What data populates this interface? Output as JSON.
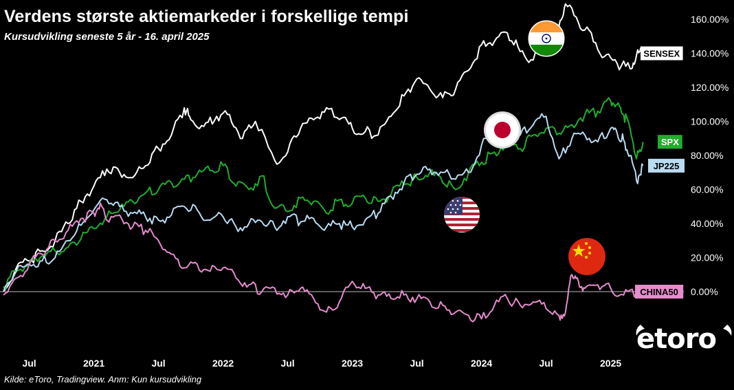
{
  "header": {
    "title": "Verdens største aktiemarkeder i forskellige tempi",
    "subtitle": "Kursudvikling seneste 5 år - 16. april 2025"
  },
  "footer": {
    "source": "Kilde: eToro, Tradingview. Anm: Kun kursudvikling"
  },
  "brand": {
    "logo_text": "etoro"
  },
  "flags": {
    "india": "india-flag-icon",
    "japan": "japan-flag-icon",
    "usa": "usa-flag-icon",
    "china": "china-flag-icon"
  },
  "chart_data": {
    "type": "line",
    "title": "Verdens største aktiemarkeder i forskellige tempi",
    "subtitle": "Kursudvikling seneste 5 år - 16. april 2025",
    "xlabel": "",
    "ylabel": "",
    "x_range": [
      2020.3,
      2025.3
    ],
    "ylim": [
      -22,
      172
    ],
    "y_ticks": [
      0,
      20,
      40,
      60,
      80,
      100,
      120,
      140,
      160
    ],
    "y_tick_labels": [
      "0.00%",
      "20.00%",
      "40.00%",
      "60.00%",
      "80.00%",
      "100.00%",
      "120.00%",
      "140.00%",
      "160.00%"
    ],
    "x_ticks": [
      {
        "x": 2020.5,
        "label": "Jul"
      },
      {
        "x": 2021.0,
        "label": "2021"
      },
      {
        "x": 2021.5,
        "label": "Jul"
      },
      {
        "x": 2022.0,
        "label": "2022"
      },
      {
        "x": 2022.5,
        "label": "Jul"
      },
      {
        "x": 2023.0,
        "label": "2023"
      },
      {
        "x": 2023.5,
        "label": "Jul"
      },
      {
        "x": 2024.0,
        "label": "2024"
      },
      {
        "x": 2024.5,
        "label": "Jul"
      },
      {
        "x": 2025.0,
        "label": "2025"
      }
    ],
    "zero_line": 0,
    "legend": "end-of-line labels",
    "series": [
      {
        "name": "SENSEX",
        "label": "SENSEX",
        "color": "#ffffff",
        "label_bg": "#ffffff",
        "label_fg": "#000000",
        "end_value": 140,
        "points": [
          [
            2020.3,
            0
          ],
          [
            2020.4,
            14
          ],
          [
            2020.5,
            18
          ],
          [
            2020.6,
            24
          ],
          [
            2020.7,
            30
          ],
          [
            2020.8,
            40
          ],
          [
            2020.9,
            53
          ],
          [
            2021.0,
            62
          ],
          [
            2021.1,
            72
          ],
          [
            2021.2,
            70
          ],
          [
            2021.3,
            67
          ],
          [
            2021.4,
            74
          ],
          [
            2021.5,
            84
          ],
          [
            2021.6,
            92
          ],
          [
            2021.7,
            108
          ],
          [
            2021.75,
            101
          ],
          [
            2021.85,
            97
          ],
          [
            2021.95,
            103
          ],
          [
            2022.05,
            104
          ],
          [
            2022.15,
            90
          ],
          [
            2022.25,
            100
          ],
          [
            2022.4,
            77
          ],
          [
            2022.5,
            82
          ],
          [
            2022.6,
            96
          ],
          [
            2022.7,
            101
          ],
          [
            2022.8,
            108
          ],
          [
            2022.92,
            102
          ],
          [
            2023.0,
            96
          ],
          [
            2023.1,
            94
          ],
          [
            2023.2,
            92
          ],
          [
            2023.3,
            103
          ],
          [
            2023.4,
            115
          ],
          [
            2023.5,
            125
          ],
          [
            2023.6,
            119
          ],
          [
            2023.7,
            114
          ],
          [
            2023.8,
            119
          ],
          [
            2023.9,
            130
          ],
          [
            2024.0,
            145
          ],
          [
            2024.1,
            147
          ],
          [
            2024.2,
            152
          ],
          [
            2024.3,
            141
          ],
          [
            2024.4,
            136
          ],
          [
            2024.5,
            148
          ],
          [
            2024.6,
            156
          ],
          [
            2024.65,
            169
          ],
          [
            2024.75,
            158
          ],
          [
            2024.85,
            152
          ],
          [
            2024.95,
            138
          ],
          [
            2025.05,
            134
          ],
          [
            2025.15,
            131
          ],
          [
            2025.2,
            139
          ],
          [
            2025.25,
            141
          ]
        ]
      },
      {
        "name": "SPX",
        "label": "SPX",
        "color": "#1fae2c",
        "label_bg": "#1fae2c",
        "label_fg": "#ffffff",
        "end_value": 88,
        "points": [
          [
            2020.3,
            3
          ],
          [
            2020.4,
            12
          ],
          [
            2020.5,
            17
          ],
          [
            2020.6,
            21
          ],
          [
            2020.7,
            24
          ],
          [
            2020.8,
            26
          ],
          [
            2020.9,
            31
          ],
          [
            2021.0,
            37
          ],
          [
            2021.1,
            44
          ],
          [
            2021.2,
            48
          ],
          [
            2021.3,
            53
          ],
          [
            2021.4,
            58
          ],
          [
            2021.5,
            60
          ],
          [
            2021.6,
            64
          ],
          [
            2021.7,
            66
          ],
          [
            2021.8,
            69
          ],
          [
            2021.9,
            71
          ],
          [
            2022.0,
            74
          ],
          [
            2022.1,
            62
          ],
          [
            2022.2,
            60
          ],
          [
            2022.3,
            68
          ],
          [
            2022.4,
            49
          ],
          [
            2022.5,
            47
          ],
          [
            2022.6,
            55
          ],
          [
            2022.7,
            53
          ],
          [
            2022.8,
            46
          ],
          [
            2022.9,
            54
          ],
          [
            2023.0,
            52
          ],
          [
            2023.1,
            55
          ],
          [
            2023.2,
            53
          ],
          [
            2023.3,
            57
          ],
          [
            2023.4,
            63
          ],
          [
            2023.5,
            67
          ],
          [
            2023.6,
            70
          ],
          [
            2023.7,
            64
          ],
          [
            2023.8,
            60
          ],
          [
            2023.9,
            70
          ],
          [
            2024.0,
            76
          ],
          [
            2024.1,
            82
          ],
          [
            2024.2,
            88
          ],
          [
            2024.3,
            84
          ],
          [
            2024.4,
            92
          ],
          [
            2024.5,
            96
          ],
          [
            2024.6,
            93
          ],
          [
            2024.7,
            98
          ],
          [
            2024.8,
            104
          ],
          [
            2024.9,
            106
          ],
          [
            2025.0,
            112
          ],
          [
            2025.05,
            110
          ],
          [
            2025.1,
            104
          ],
          [
            2025.15,
            96
          ],
          [
            2025.2,
            78
          ],
          [
            2025.25,
            88
          ]
        ]
      },
      {
        "name": "JP225",
        "label": "JP225",
        "color": "#b9dcf2",
        "label_bg": "#b9dcf2",
        "label_fg": "#000000",
        "end_value": 74,
        "points": [
          [
            2020.3,
            0
          ],
          [
            2020.4,
            12
          ],
          [
            2020.5,
            16
          ],
          [
            2020.6,
            18
          ],
          [
            2020.7,
            20
          ],
          [
            2020.8,
            30
          ],
          [
            2020.9,
            39
          ],
          [
            2021.0,
            48
          ],
          [
            2021.1,
            54
          ],
          [
            2021.2,
            50
          ],
          [
            2021.3,
            46
          ],
          [
            2021.4,
            44
          ],
          [
            2021.5,
            42
          ],
          [
            2021.6,
            45
          ],
          [
            2021.7,
            50
          ],
          [
            2021.8,
            48
          ],
          [
            2021.9,
            42
          ],
          [
            2022.0,
            44
          ],
          [
            2022.1,
            38
          ],
          [
            2022.2,
            40
          ],
          [
            2022.3,
            41
          ],
          [
            2022.4,
            38
          ],
          [
            2022.5,
            44
          ],
          [
            2022.6,
            41
          ],
          [
            2022.7,
            43
          ],
          [
            2022.8,
            38
          ],
          [
            2022.9,
            40
          ],
          [
            2023.0,
            38
          ],
          [
            2023.1,
            42
          ],
          [
            2023.2,
            46
          ],
          [
            2023.3,
            56
          ],
          [
            2023.4,
            64
          ],
          [
            2023.5,
            69
          ],
          [
            2023.6,
            72
          ],
          [
            2023.7,
            70
          ],
          [
            2023.8,
            66
          ],
          [
            2023.9,
            70
          ],
          [
            2024.0,
            86
          ],
          [
            2024.1,
            94
          ],
          [
            2024.2,
            95
          ],
          [
            2024.3,
            92
          ],
          [
            2024.4,
            98
          ],
          [
            2024.5,
            103
          ],
          [
            2024.6,
            78
          ],
          [
            2024.7,
            90
          ],
          [
            2024.8,
            92
          ],
          [
            2024.9,
            88
          ],
          [
            2025.0,
            96
          ],
          [
            2025.05,
            93
          ],
          [
            2025.1,
            89
          ],
          [
            2025.15,
            80
          ],
          [
            2025.2,
            65
          ],
          [
            2025.25,
            74
          ]
        ]
      },
      {
        "name": "CHINA50",
        "label": "CHINA50",
        "color": "#e58ccc",
        "label_bg": "#e58ccc",
        "label_fg": "#000000",
        "end_value": 0,
        "points": [
          [
            2020.3,
            -2
          ],
          [
            2020.4,
            8
          ],
          [
            2020.5,
            16
          ],
          [
            2020.6,
            22
          ],
          [
            2020.7,
            30
          ],
          [
            2020.8,
            36
          ],
          [
            2020.9,
            43
          ],
          [
            2021.0,
            46
          ],
          [
            2021.05,
            52
          ],
          [
            2021.1,
            42
          ],
          [
            2021.2,
            45
          ],
          [
            2021.3,
            38
          ],
          [
            2021.4,
            36
          ],
          [
            2021.5,
            30
          ],
          [
            2021.6,
            22
          ],
          [
            2021.7,
            14
          ],
          [
            2021.8,
            16
          ],
          [
            2021.9,
            12
          ],
          [
            2022.0,
            14
          ],
          [
            2022.1,
            8
          ],
          [
            2022.2,
            4
          ],
          [
            2022.3,
            0
          ],
          [
            2022.4,
            2
          ],
          [
            2022.5,
            -2
          ],
          [
            2022.6,
            2
          ],
          [
            2022.7,
            -4
          ],
          [
            2022.8,
            -12
          ],
          [
            2022.9,
            -6
          ],
          [
            2023.0,
            6
          ],
          [
            2023.1,
            2
          ],
          [
            2023.2,
            -2
          ],
          [
            2023.3,
            -4
          ],
          [
            2023.4,
            -2
          ],
          [
            2023.5,
            -4
          ],
          [
            2023.6,
            -6
          ],
          [
            2023.7,
            -8
          ],
          [
            2023.8,
            -12
          ],
          [
            2023.9,
            -14
          ],
          [
            2024.0,
            -16
          ],
          [
            2024.1,
            -8
          ],
          [
            2024.2,
            -4
          ],
          [
            2024.3,
            -8
          ],
          [
            2024.4,
            -6
          ],
          [
            2024.5,
            -10
          ],
          [
            2024.6,
            -14
          ],
          [
            2024.65,
            -12
          ],
          [
            2024.7,
            10
          ],
          [
            2024.75,
            6
          ],
          [
            2024.8,
            2
          ],
          [
            2024.9,
            4
          ],
          [
            2025.0,
            2
          ],
          [
            2025.1,
            -2
          ],
          [
            2025.2,
            0
          ],
          [
            2025.25,
            0
          ]
        ]
      }
    ]
  }
}
